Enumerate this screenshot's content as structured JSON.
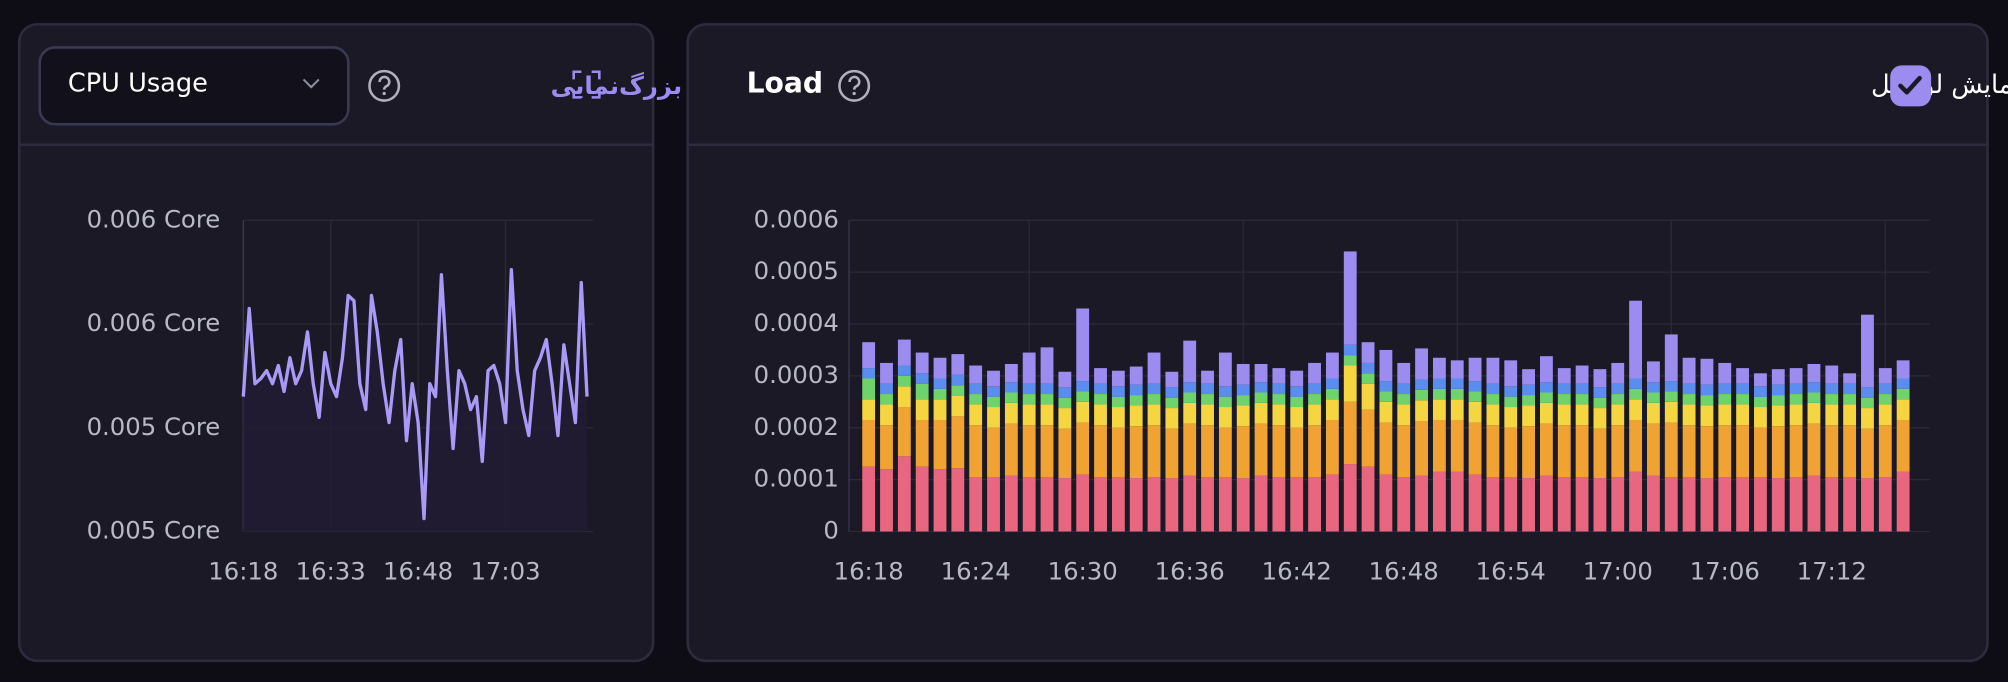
{
  "header": {
    "metric_select": "CPU Usage",
    "zoom": "بزرگ‌نمایی",
    "panel_title": "Load",
    "total_toggle": "نمایش لود کل",
    "total_checked": true
  },
  "chart_data": [
    {
      "type": "line",
      "color": "#a99af7",
      "fill": "#221c33",
      "x": [
        978,
        979,
        980,
        981,
        982,
        983,
        984,
        985,
        986,
        987,
        988,
        989,
        990,
        991,
        992,
        993,
        994,
        995,
        996,
        997,
        998,
        999,
        1000,
        1001,
        1002,
        1003,
        1004,
        1005,
        1006,
        1007,
        1008,
        1009,
        1010,
        1011,
        1012,
        1013,
        1014,
        1015,
        1016,
        1017,
        1018,
        1019,
        1020,
        1021,
        1022,
        1023,
        1024,
        1025,
        1026,
        1027,
        1028,
        1029,
        1030,
        1031,
        1032,
        1033,
        1034,
        1035,
        1036,
        1037
      ],
      "values": [
        0.00552,
        0.00586,
        0.00557,
        0.00559,
        0.00562,
        0.00557,
        0.00564,
        0.00554,
        0.00567,
        0.00557,
        0.00562,
        0.00577,
        0.00557,
        0.00544,
        0.00569,
        0.00557,
        0.00552,
        0.00567,
        0.00591,
        0.00589,
        0.00557,
        0.00547,
        0.00591,
        0.00577,
        0.00557,
        0.00542,
        0.00562,
        0.00574,
        0.00535,
        0.00557,
        0.00542,
        0.00505,
        0.00557,
        0.00552,
        0.00599,
        0.00562,
        0.00532,
        0.00562,
        0.00557,
        0.00547,
        0.00552,
        0.00527,
        0.00562,
        0.00564,
        0.00557,
        0.00542,
        0.00601,
        0.00562,
        0.00547,
        0.00537,
        0.00562,
        0.00567,
        0.00574,
        0.00557,
        0.00537,
        0.00572,
        0.00557,
        0.00542,
        0.00596,
        0.00552
      ],
      "xlim": [
        978,
        1038
      ],
      "xticks": [
        {
          "value": 978,
          "label": "16:18"
        },
        {
          "value": 993,
          "label": "16:33"
        },
        {
          "value": 1008,
          "label": "16:48"
        },
        {
          "value": 1023,
          "label": "17:03"
        }
      ],
      "ylim": [
        0.005,
        0.0062
      ],
      "yticks": [
        {
          "value": 0.005,
          "label": "0.005 Core"
        },
        {
          "value": 0.0054,
          "label": "0.005 Core"
        },
        {
          "value": 0.0058,
          "label": "0.006 Core"
        },
        {
          "value": 0.0062,
          "label": "0.006 Core"
        }
      ],
      "grid": true
    },
    {
      "type": "bar",
      "stacked": true,
      "x": [
        978,
        979,
        980,
        981,
        982,
        983,
        984,
        985,
        986,
        987,
        988,
        989,
        990,
        991,
        992,
        993,
        994,
        995,
        996,
        997,
        998,
        999,
        1000,
        1001,
        1002,
        1003,
        1004,
        1005,
        1006,
        1007,
        1008,
        1009,
        1010,
        1011,
        1012,
        1013,
        1014,
        1015,
        1016,
        1017,
        1018,
        1019,
        1020,
        1021,
        1022,
        1023,
        1024,
        1025,
        1026,
        1027,
        1028,
        1029,
        1030,
        1031,
        1032,
        1033,
        1034,
        1035,
        1036
      ],
      "series": [
        {
          "color": "#e8667f",
          "values": [
            0.000125,
            0.00012,
            0.000145,
            0.000125,
            0.00012,
            0.000122,
            0.000105,
            0.000105,
            0.000108,
            0.000105,
            0.000105,
            0.000103,
            0.00011,
            0.000105,
            0.000105,
            0.000103,
            0.000105,
            0.000103,
            0.000108,
            0.000105,
            0.000105,
            0.000103,
            0.000108,
            0.000105,
            0.000105,
            0.000105,
            0.00011,
            0.00013,
            0.000125,
            0.00011,
            0.000105,
            0.000108,
            0.000115,
            0.000115,
            0.00011,
            0.000105,
            0.000105,
            0.000103,
            0.000108,
            0.000105,
            0.000105,
            0.000103,
            0.000105,
            0.000115,
            0.000108,
            0.000105,
            0.000105,
            0.000103,
            0.000105,
            0.000105,
            0.000105,
            0.000103,
            0.000105,
            0.000108,
            0.000105,
            0.000105,
            0.000103,
            0.000105,
            0.000115
          ]
        },
        {
          "color": "#f0a332",
          "values": [
            9e-05,
            8.5e-05,
            9.5e-05,
            9e-05,
            9.5e-05,
            0.0001,
            0.0001,
            9.5e-05,
            0.0001,
            0.0001,
            0.0001,
            9.5e-05,
            0.0001,
            0.0001,
            9.5e-05,
            0.0001,
            0.0001,
            9.5e-05,
            0.0001,
            0.0001,
            9.5e-05,
            0.0001,
            0.0001,
            0.0001,
            9.5e-05,
            0.0001,
            0.000105,
            0.00012,
            0.00011,
            0.0001,
            0.0001,
            0.000105,
            0.0001,
            0.0001,
            0.0001,
            0.0001,
            9.5e-05,
            0.0001,
            0.0001,
            0.0001,
            0.0001,
            9.5e-05,
            0.0001,
            0.0001,
            0.0001,
            0.000105,
            0.0001,
            0.0001,
            0.0001,
            0.0001,
            9.5e-05,
            0.0001,
            0.0001,
            0.0001,
            0.0001,
            0.0001,
            9.5e-05,
            0.0001,
            0.0001
          ]
        },
        {
          "color": "#f5d540",
          "values": [
            4e-05,
            4e-05,
            4e-05,
            4e-05,
            4e-05,
            4e-05,
            4e-05,
            4e-05,
            4e-05,
            4e-05,
            4e-05,
            4e-05,
            4e-05,
            4e-05,
            4e-05,
            4e-05,
            4e-05,
            4e-05,
            4e-05,
            4e-05,
            4e-05,
            4e-05,
            4e-05,
            4e-05,
            4e-05,
            4e-05,
            4e-05,
            7e-05,
            5e-05,
            4e-05,
            4e-05,
            4e-05,
            4e-05,
            4e-05,
            4e-05,
            4e-05,
            4e-05,
            4e-05,
            4e-05,
            4e-05,
            4e-05,
            4e-05,
            4e-05,
            4e-05,
            4e-05,
            4e-05,
            4e-05,
            4e-05,
            4e-05,
            4e-05,
            4e-05,
            4e-05,
            4e-05,
            4e-05,
            4e-05,
            4e-05,
            4e-05,
            4e-05,
            4e-05
          ]
        },
        {
          "color": "#6fd36c",
          "values": [
            4e-05,
            2e-05,
            2e-05,
            3e-05,
            2e-05,
            2e-05,
            2e-05,
            2e-05,
            2e-05,
            2e-05,
            2e-05,
            2e-05,
            2e-05,
            2e-05,
            2e-05,
            2e-05,
            2e-05,
            2e-05,
            2e-05,
            2e-05,
            2e-05,
            2e-05,
            2e-05,
            2e-05,
            2e-05,
            2e-05,
            2e-05,
            2e-05,
            2e-05,
            2e-05,
            2e-05,
            2e-05,
            2e-05,
            2e-05,
            2e-05,
            2e-05,
            2e-05,
            2e-05,
            2e-05,
            2e-05,
            2e-05,
            2e-05,
            2e-05,
            2e-05,
            2e-05,
            2e-05,
            2e-05,
            2e-05,
            2e-05,
            2e-05,
            2e-05,
            2e-05,
            2e-05,
            2e-05,
            2e-05,
            2e-05,
            2e-05,
            2e-05,
            2e-05
          ]
        },
        {
          "color": "#5b8def",
          "values": [
            2e-05,
            2e-05,
            2e-05,
            2e-05,
            2e-05,
            2e-05,
            2e-05,
            2e-05,
            2e-05,
            2e-05,
            2e-05,
            2e-05,
            2e-05,
            2e-05,
            2e-05,
            2e-05,
            2e-05,
            2e-05,
            2e-05,
            2e-05,
            2e-05,
            2e-05,
            2e-05,
            2e-05,
            2e-05,
            2e-05,
            2e-05,
            2e-05,
            2e-05,
            2e-05,
            2e-05,
            2e-05,
            2e-05,
            2e-05,
            2e-05,
            2e-05,
            2e-05,
            2e-05,
            2e-05,
            2e-05,
            2e-05,
            2e-05,
            2e-05,
            2e-05,
            2e-05,
            2e-05,
            2e-05,
            2e-05,
            2e-05,
            2e-05,
            2e-05,
            2e-05,
            2e-05,
            2e-05,
            2e-05,
            2e-05,
            2e-05,
            2e-05,
            2e-05
          ]
        },
        {
          "color": "#9d8cf0",
          "values": [
            5e-05,
            4e-05,
            5e-05,
            4e-05,
            4e-05,
            4e-05,
            3.5e-05,
            3e-05,
            3.5e-05,
            6e-05,
            7e-05,
            3e-05,
            0.00014,
            3e-05,
            3e-05,
            3.5e-05,
            6e-05,
            3e-05,
            8e-05,
            2.5e-05,
            6.5e-05,
            4e-05,
            3.5e-05,
            3e-05,
            3e-05,
            4e-05,
            5e-05,
            0.00018,
            4e-05,
            6e-05,
            4e-05,
            6e-05,
            4e-05,
            3.5e-05,
            4.5e-05,
            5e-05,
            5e-05,
            3e-05,
            5e-05,
            3e-05,
            3.5e-05,
            3.5e-05,
            4e-05,
            0.00015,
            4e-05,
            9e-05,
            5e-05,
            5e-05,
            4e-05,
            3e-05,
            2.5e-05,
            3e-05,
            3e-05,
            3.5e-05,
            3.5e-05,
            2e-05,
            0.00014,
            3e-05,
            3.5e-05
          ]
        }
      ],
      "xlim": [
        976.9,
        1037.5
      ],
      "xticks": [
        {
          "value": 978,
          "label": "16:18"
        },
        {
          "value": 984,
          "label": "16:24"
        },
        {
          "value": 990,
          "label": "16:30"
        },
        {
          "value": 996,
          "label": "16:36"
        },
        {
          "value": 1002,
          "label": "16:42"
        },
        {
          "value": 1008,
          "label": "16:48"
        },
        {
          "value": 1014,
          "label": "16:54"
        },
        {
          "value": 1020,
          "label": "17:00"
        },
        {
          "value": 1026,
          "label": "17:06"
        },
        {
          "value": 1032,
          "label": "17:12"
        }
      ],
      "xgrid": [
        987,
        999,
        1011,
        1023,
        1035
      ],
      "ylim": [
        0,
        0.0006
      ],
      "yticks": [
        0,
        0.0001,
        0.0002,
        0.0003,
        0.0004,
        0.0005,
        0.0006
      ],
      "grid": true
    }
  ]
}
